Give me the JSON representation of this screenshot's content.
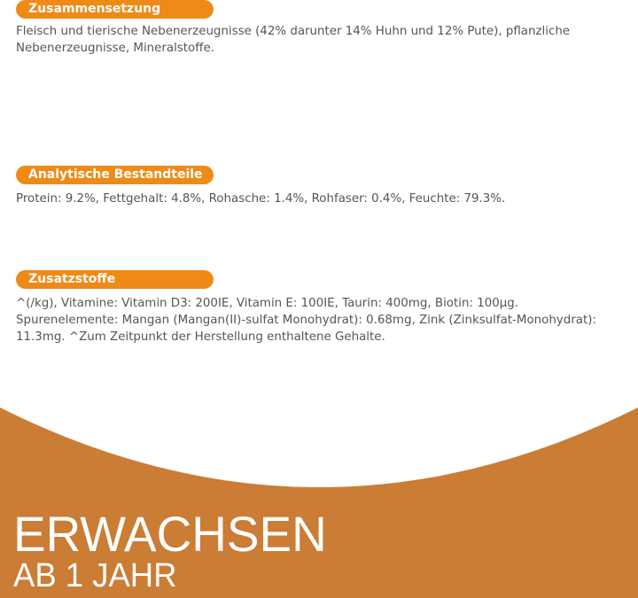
{
  "sections": [
    {
      "title": "Zusammensetzung",
      "lines": [
        "Fleisch und tierische Nebenerzeugnisse (42% darunter 14% Huhn und 12% Pute), pflanzliche",
        "Nebenerzeugnisse, Mineralstoffe."
      ]
    },
    {
      "title": "Analytische Bestandteile",
      "lines": [
        "Protein: 9.2%, Fettgehalt: 4.8%, Rohasche: 1.4%, Rohfaser: 0.4%, Feuchte: 79.3%."
      ]
    },
    {
      "title": "Zusatzstoffe",
      "lines": [
        "^(/kg), Vitamine: Vitamin D3: 200IE, Vitamin E: 100IE, Taurin: 400mg, Biotin: 100µg.",
        "Spurenelemente: Mangan (Mangan(II)-sulfat Monohydrat): 0.68mg, Zink (Zinksulfat-Monohydrat):",
        "11.3mg. ^Zum Zeitpunkt der Herstellung enthaltene Gehalte."
      ]
    }
  ],
  "banner": {
    "headline": "ERWACHSEN",
    "subline": "AB 1 JAHR"
  },
  "colors": {
    "pill": "#ef8a17",
    "banner": "#cb7c35",
    "text": "#555555"
  }
}
